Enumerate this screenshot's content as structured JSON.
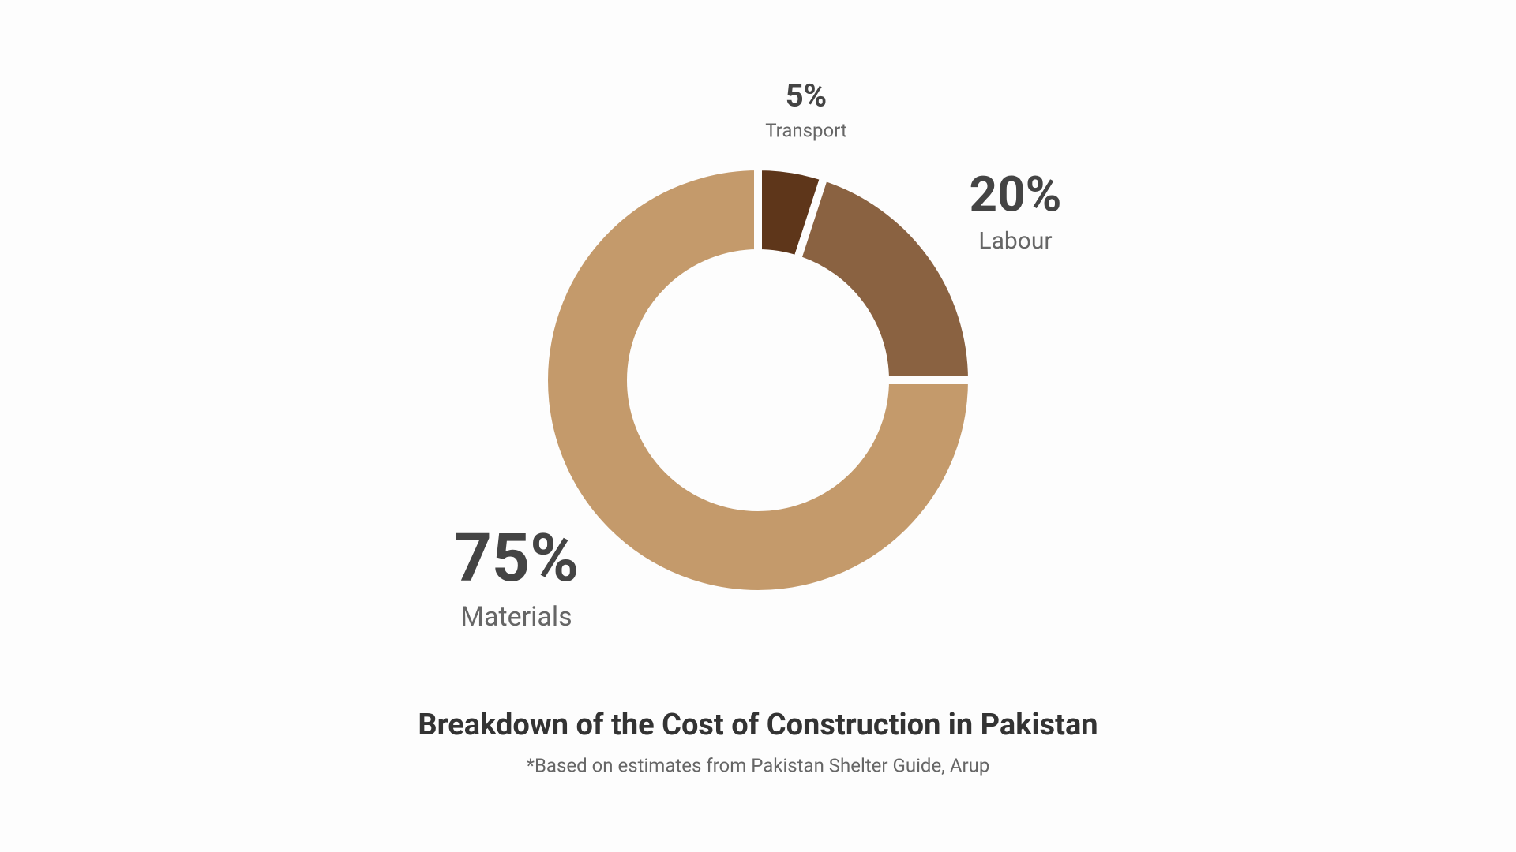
{
  "chart_data": {
    "type": "donut",
    "title": "Breakdown of the Cost of Construction in Pakistan",
    "subtitle": "*Based on estimates from Pakistan Shelter Guide, Arup",
    "categories": [
      "Transport",
      "Labour",
      "Materials"
    ],
    "values": [
      5,
      20,
      75
    ],
    "value_labels": [
      "5%",
      "20%",
      "75%"
    ],
    "colors": [
      "#5e361a",
      "#8a6241",
      "#c49a6b"
    ]
  }
}
